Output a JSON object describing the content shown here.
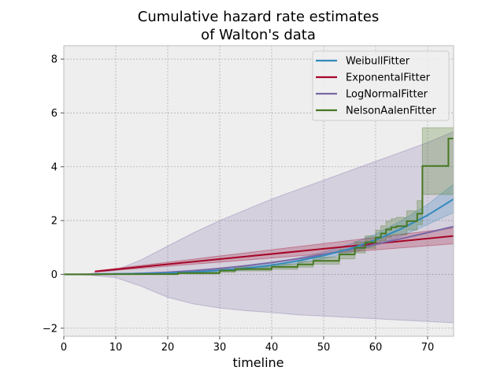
{
  "chart_data": {
    "type": "line",
    "title_lines": [
      "Cumulative hazard rate estimates",
      "of Walton's data"
    ],
    "xlabel": "timeline",
    "ylabel": "",
    "xlim": [
      0,
      75
    ],
    "ylim": [
      -2.3,
      8.5
    ],
    "xticks": [
      "0",
      "10",
      "20",
      "30",
      "40",
      "50",
      "60",
      "70"
    ],
    "yticks": [
      "−2",
      "0",
      "2",
      "4",
      "6",
      "8"
    ],
    "grid": true,
    "legend_position": "top-right",
    "series": [
      {
        "name": "WeibullFitter",
        "color": "#348abd",
        "step": false,
        "x": [
          6,
          10,
          15,
          20,
          25,
          30,
          35,
          40,
          45,
          50,
          55,
          60,
          65,
          70,
          75
        ],
        "y": [
          0.01,
          0.02,
          0.03,
          0.05,
          0.09,
          0.15,
          0.23,
          0.34,
          0.5,
          0.7,
          0.95,
          1.28,
          1.7,
          2.2,
          2.8
        ],
        "ci_upper": [
          0.02,
          0.03,
          0.05,
          0.08,
          0.12,
          0.2,
          0.3,
          0.42,
          0.6,
          0.83,
          1.12,
          1.5,
          2.0,
          2.6,
          3.35
        ],
        "ci_lower": [
          0.0,
          0.01,
          0.02,
          0.03,
          0.06,
          0.11,
          0.17,
          0.27,
          0.41,
          0.58,
          0.8,
          1.08,
          1.43,
          1.85,
          2.3
        ]
      },
      {
        "name": "ExponentalFitter",
        "color": "#a60628",
        "step": false,
        "x": [
          6,
          75
        ],
        "y": [
          0.11,
          1.43
        ],
        "ci_upper": [
          0.13,
          1.72
        ],
        "ci_lower": [
          0.09,
          1.14
        ]
      },
      {
        "name": "LogNormalFitter",
        "color": "#7a68a6",
        "step": false,
        "x": [
          0,
          5,
          10,
          15,
          20,
          25,
          30,
          35,
          40,
          45,
          50,
          55,
          60,
          65,
          70,
          75
        ],
        "y": [
          0.0,
          0.0,
          0.01,
          0.04,
          0.08,
          0.14,
          0.22,
          0.32,
          0.44,
          0.58,
          0.74,
          0.92,
          1.12,
          1.33,
          1.55,
          1.78
        ],
        "ci_upper": [
          0.0,
          0.03,
          0.15,
          0.55,
          1.05,
          1.55,
          2.0,
          2.4,
          2.8,
          3.15,
          3.5,
          3.85,
          4.2,
          4.55,
          4.9,
          5.3
        ],
        "ci_lower": [
          0.0,
          -0.03,
          -0.12,
          -0.45,
          -0.85,
          -1.1,
          -1.25,
          -1.35,
          -1.42,
          -1.5,
          -1.55,
          -1.6,
          -1.65,
          -1.7,
          -1.75,
          -1.8
        ]
      },
      {
        "name": "NelsonAalenFitter",
        "color": "#467821",
        "step": true,
        "x": [
          0,
          7,
          22,
          30,
          33,
          40,
          45,
          48,
          53,
          56,
          58,
          60,
          61,
          62,
          63,
          64,
          66,
          68,
          69,
          74,
          75
        ],
        "y": [
          0.0,
          0.01,
          0.05,
          0.14,
          0.2,
          0.28,
          0.37,
          0.5,
          0.74,
          0.99,
          1.19,
          1.37,
          1.52,
          1.67,
          1.75,
          1.79,
          1.98,
          2.26,
          4.03,
          5.05,
          5.05
        ],
        "ci_upper": [
          0.0,
          0.02,
          0.08,
          0.2,
          0.28,
          0.38,
          0.48,
          0.64,
          0.92,
          1.2,
          1.43,
          1.64,
          1.8,
          1.98,
          2.07,
          2.12,
          2.36,
          2.74,
          5.45,
          5.45,
          5.45
        ],
        "ci_lower": [
          0.0,
          0.0,
          0.02,
          0.08,
          0.13,
          0.19,
          0.27,
          0.38,
          0.58,
          0.8,
          0.97,
          1.12,
          1.26,
          1.38,
          1.45,
          1.48,
          1.65,
          1.85,
          2.97,
          2.97,
          2.97
        ]
      }
    ]
  }
}
